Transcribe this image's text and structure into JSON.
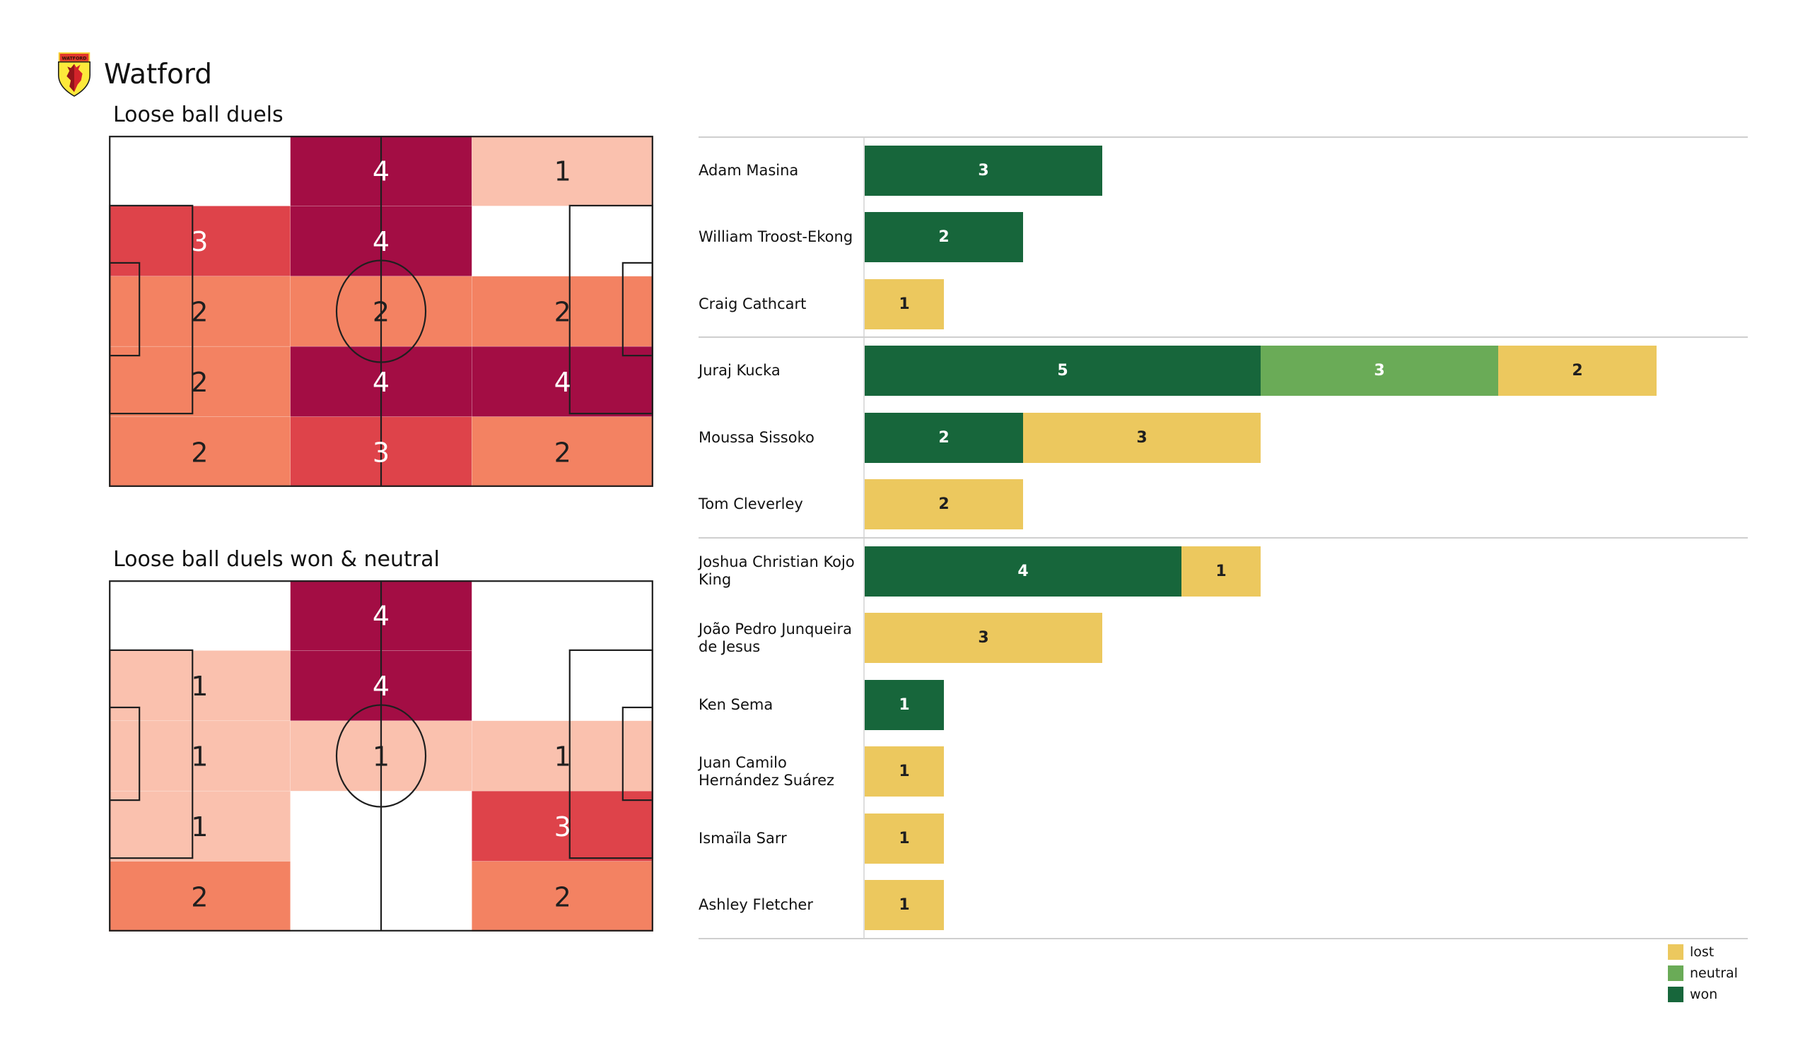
{
  "header": {
    "team_name": "Watford"
  },
  "heat_scale": {
    "1": "#fac1ae",
    "2": "#f38262",
    "3": "#de434a",
    "4": "#a30d44"
  },
  "pitch_line_color": "#1f1f1f",
  "chart_data": [
    {
      "type": "heatmap",
      "title": "Loose ball duels",
      "rows": 5,
      "cols": 3,
      "values": [
        [
          0,
          4,
          1
        ],
        [
          3,
          4,
          0
        ],
        [
          2,
          2,
          2
        ],
        [
          2,
          4,
          4
        ],
        [
          2,
          3,
          2
        ]
      ]
    },
    {
      "type": "heatmap",
      "title": "Loose ball duels won & neutral",
      "rows": 5,
      "cols": 3,
      "values": [
        [
          0,
          4,
          0
        ],
        [
          1,
          4,
          0
        ],
        [
          1,
          1,
          1
        ],
        [
          1,
          0,
          3
        ],
        [
          2,
          0,
          2
        ]
      ]
    },
    {
      "type": "bar",
      "stacked": true,
      "orientation": "horizontal",
      "xlim": [
        0,
        10
      ],
      "categories": [
        "Adam Masina",
        "William Troost-Ekong",
        "Craig Cathcart",
        "Juraj Kucka",
        "Moussa Sissoko",
        "Tom Cleverley",
        "Joshua Christian Kojo King",
        "João Pedro Junqueira de Jesus",
        "Ken Sema",
        "Juan Camilo Hernández Suárez",
        "Ismaïla Sarr",
        "Ashley Fletcher"
      ],
      "series": [
        {
          "name": "won",
          "color": "#17663b",
          "text_color": "#ffffff",
          "values": [
            3,
            2,
            0,
            5,
            2,
            0,
            4,
            0,
            1,
            0,
            0,
            0
          ]
        },
        {
          "name": "neutral",
          "color": "#6aab57",
          "text_color": "#ffffff",
          "values": [
            0,
            0,
            0,
            3,
            0,
            0,
            0,
            0,
            0,
            0,
            0,
            0
          ]
        },
        {
          "name": "lost",
          "color": "#ecc85e",
          "text_color": "#1f1f1f",
          "values": [
            0,
            0,
            1,
            2,
            3,
            2,
            1,
            3,
            0,
            1,
            1,
            1
          ]
        }
      ],
      "group_breaks_after": [
        2,
        5
      ],
      "legend": [
        {
          "label": "lost",
          "color": "#ecc85e"
        },
        {
          "label": "neutral",
          "color": "#6aab57"
        },
        {
          "label": "won",
          "color": "#17663b"
        }
      ]
    }
  ]
}
